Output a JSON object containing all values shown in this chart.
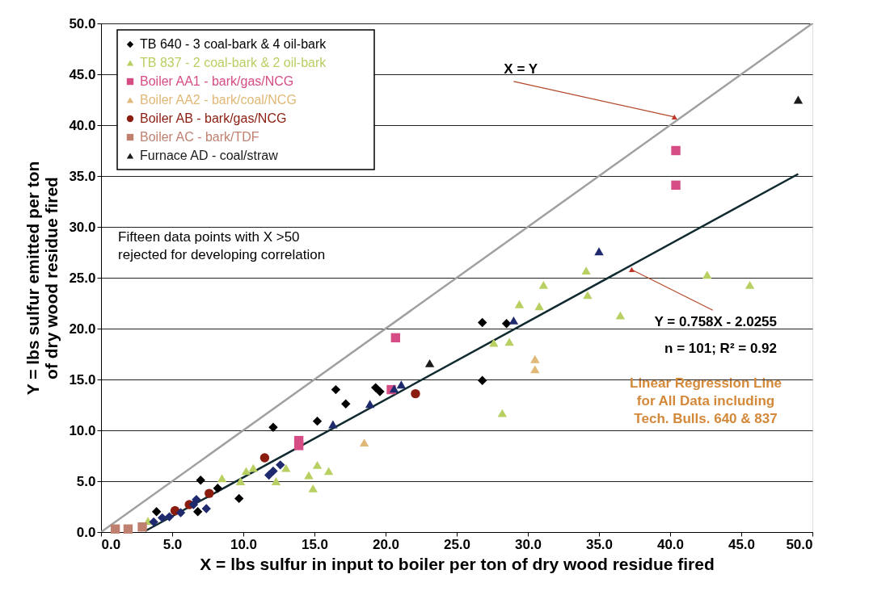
{
  "chart_data": {
    "type": "scatter",
    "xlabel": "X = lbs sulfur in input to boiler per ton of dry wood residue fired",
    "ylabel": "Y = lbs sulfur emitted per ton of dry wood residue fired",
    "xlim": [
      0,
      50
    ],
    "ylim": [
      0,
      50
    ],
    "xticks": [
      {
        "value": 0,
        "label": "0.0"
      },
      {
        "value": 5,
        "label": "5.0"
      },
      {
        "value": 10,
        "label": "10.0"
      },
      {
        "value": 15,
        "label": "15.0"
      },
      {
        "value": 20,
        "label": "20.0"
      },
      {
        "value": 25,
        "label": "25.0"
      },
      {
        "value": 30,
        "label": "30.0"
      },
      {
        "value": 35,
        "label": "35.0"
      },
      {
        "value": 40,
        "label": "40.0"
      },
      {
        "value": 45,
        "label": "45.0"
      },
      {
        "value": 50,
        "label": "50.0"
      }
    ],
    "yticks": [
      {
        "value": 0,
        "label": "0.0"
      },
      {
        "value": 5,
        "label": "5.0"
      },
      {
        "value": 10,
        "label": "10.0"
      },
      {
        "value": 15,
        "label": "15.0"
      },
      {
        "value": 20,
        "label": "20.0"
      },
      {
        "value": 25,
        "label": "25.0"
      },
      {
        "value": 30,
        "label": "30.0"
      },
      {
        "value": 35,
        "label": "35.0"
      },
      {
        "value": 40,
        "label": "40.0"
      },
      {
        "value": 45,
        "label": "45.0"
      },
      {
        "value": 50,
        "label": "50.0"
      }
    ],
    "grid": "y",
    "legend": "top left",
    "series": [
      {
        "name": "TB 640 - 3 coal-bark & 4 oil-bark",
        "color": "#000000",
        "marker": "diamond",
        "x": [
          3.9,
          7.0,
          8.2,
          9.7,
          12.1,
          15.2,
          16.5,
          17.2,
          19.3,
          19.6,
          26.8,
          26.8,
          28.5,
          6.8
        ],
        "values": [
          2.0,
          5.1,
          4.3,
          3.3,
          10.3,
          10.9,
          14.0,
          12.6,
          14.2,
          13.8,
          20.6,
          14.9,
          20.5,
          2.0
        ]
      },
      {
        "name": "TB 837 - 2 coal-bark & 2 oil-bark",
        "color": "#b8cf62",
        "marker": "triangle",
        "x": [
          3.3,
          8.5,
          9.8,
          10.2,
          10.7,
          12.3,
          13.0,
          14.6,
          14.9,
          15.2,
          16.0,
          27.6,
          28.2,
          28.7,
          29.4,
          30.8,
          31.1,
          34.1,
          34.2,
          36.5,
          42.6,
          45.6
        ],
        "values": [
          1.1,
          5.3,
          5.0,
          6.0,
          6.3,
          5.0,
          6.3,
          5.6,
          4.3,
          6.6,
          6.0,
          18.6,
          11.7,
          18.7,
          22.4,
          22.2,
          24.3,
          25.7,
          23.3,
          21.3,
          25.3,
          24.3
        ]
      },
      {
        "name": "Boiler AA1 - bark/gas/NCG",
        "color": "#d64c85",
        "marker": "square",
        "x": [
          13.9,
          13.9,
          20.7,
          20.4,
          40.4,
          40.4
        ],
        "values": [
          8.5,
          9.0,
          19.1,
          14.0,
          37.5,
          34.1
        ]
      },
      {
        "name": "Boiler AA2 - bark/coal/NCG",
        "color": "#e0b877",
        "marker": "triangle",
        "x": [
          18.5,
          30.5,
          30.5
        ],
        "values": [
          8.8,
          17.0,
          16.0
        ]
      },
      {
        "name": "Boiler AB - bark/gas/NCG",
        "color": "#8a1c10",
        "marker": "circle",
        "x": [
          5.2,
          6.2,
          7.6,
          11.5,
          22.1
        ],
        "values": [
          2.1,
          2.7,
          3.8,
          7.3,
          13.6
        ]
      },
      {
        "name": "Boiler AC - bark/TDF",
        "color": "#c08070",
        "marker": "square",
        "x": [
          1.0,
          1.9,
          2.9
        ],
        "values": [
          0.3,
          0.3,
          0.5
        ]
      },
      {
        "name": "Furnace AD - coal/straw",
        "color": "#1a1a1a",
        "marker": "triangle",
        "x": [
          23.1,
          49.0
        ],
        "values": [
          16.6,
          42.5
        ]
      },
      {
        "color": "#1f2a6e",
        "marker": "triangle",
        "x": [
          16.3,
          18.9,
          21.1,
          29.0,
          35.0,
          20.6
        ],
        "values": [
          10.6,
          12.6,
          14.5,
          20.8,
          27.6,
          14.1
        ]
      },
      {
        "color": "#1f2a6e",
        "marker": "diamond",
        "x": [
          4.3,
          5.6,
          6.5,
          6.7,
          7.4,
          12.1,
          12.6,
          11.8,
          3.7,
          4.8
        ],
        "values": [
          1.4,
          1.9,
          2.7,
          3.2,
          2.3,
          6.0,
          6.6,
          5.6,
          1.0,
          1.5
        ]
      },
      {
        "type": "line",
        "color": "#a0a0a0",
        "x": [
          0,
          50
        ],
        "values": [
          0,
          50
        ]
      },
      {
        "type": "line",
        "color": "#102a30",
        "x": [
          3.1,
          49.0
        ],
        "values": [
          0.1,
          35.2
        ]
      }
    ],
    "annotations": [
      {
        "text": "X = Y",
        "x": 40.3,
        "y": 40.8
      },
      "Fifteen data points with X >50 rejected for developing correlation",
      {
        "text": "Y = 0.758X - 2.0255",
        "x": 37.3,
        "y": 25.8
      },
      "n = 101; R² = 0.92",
      "Linear Regression Line for All Data including Tech. Bulls. 640 & 837"
    ]
  }
}
